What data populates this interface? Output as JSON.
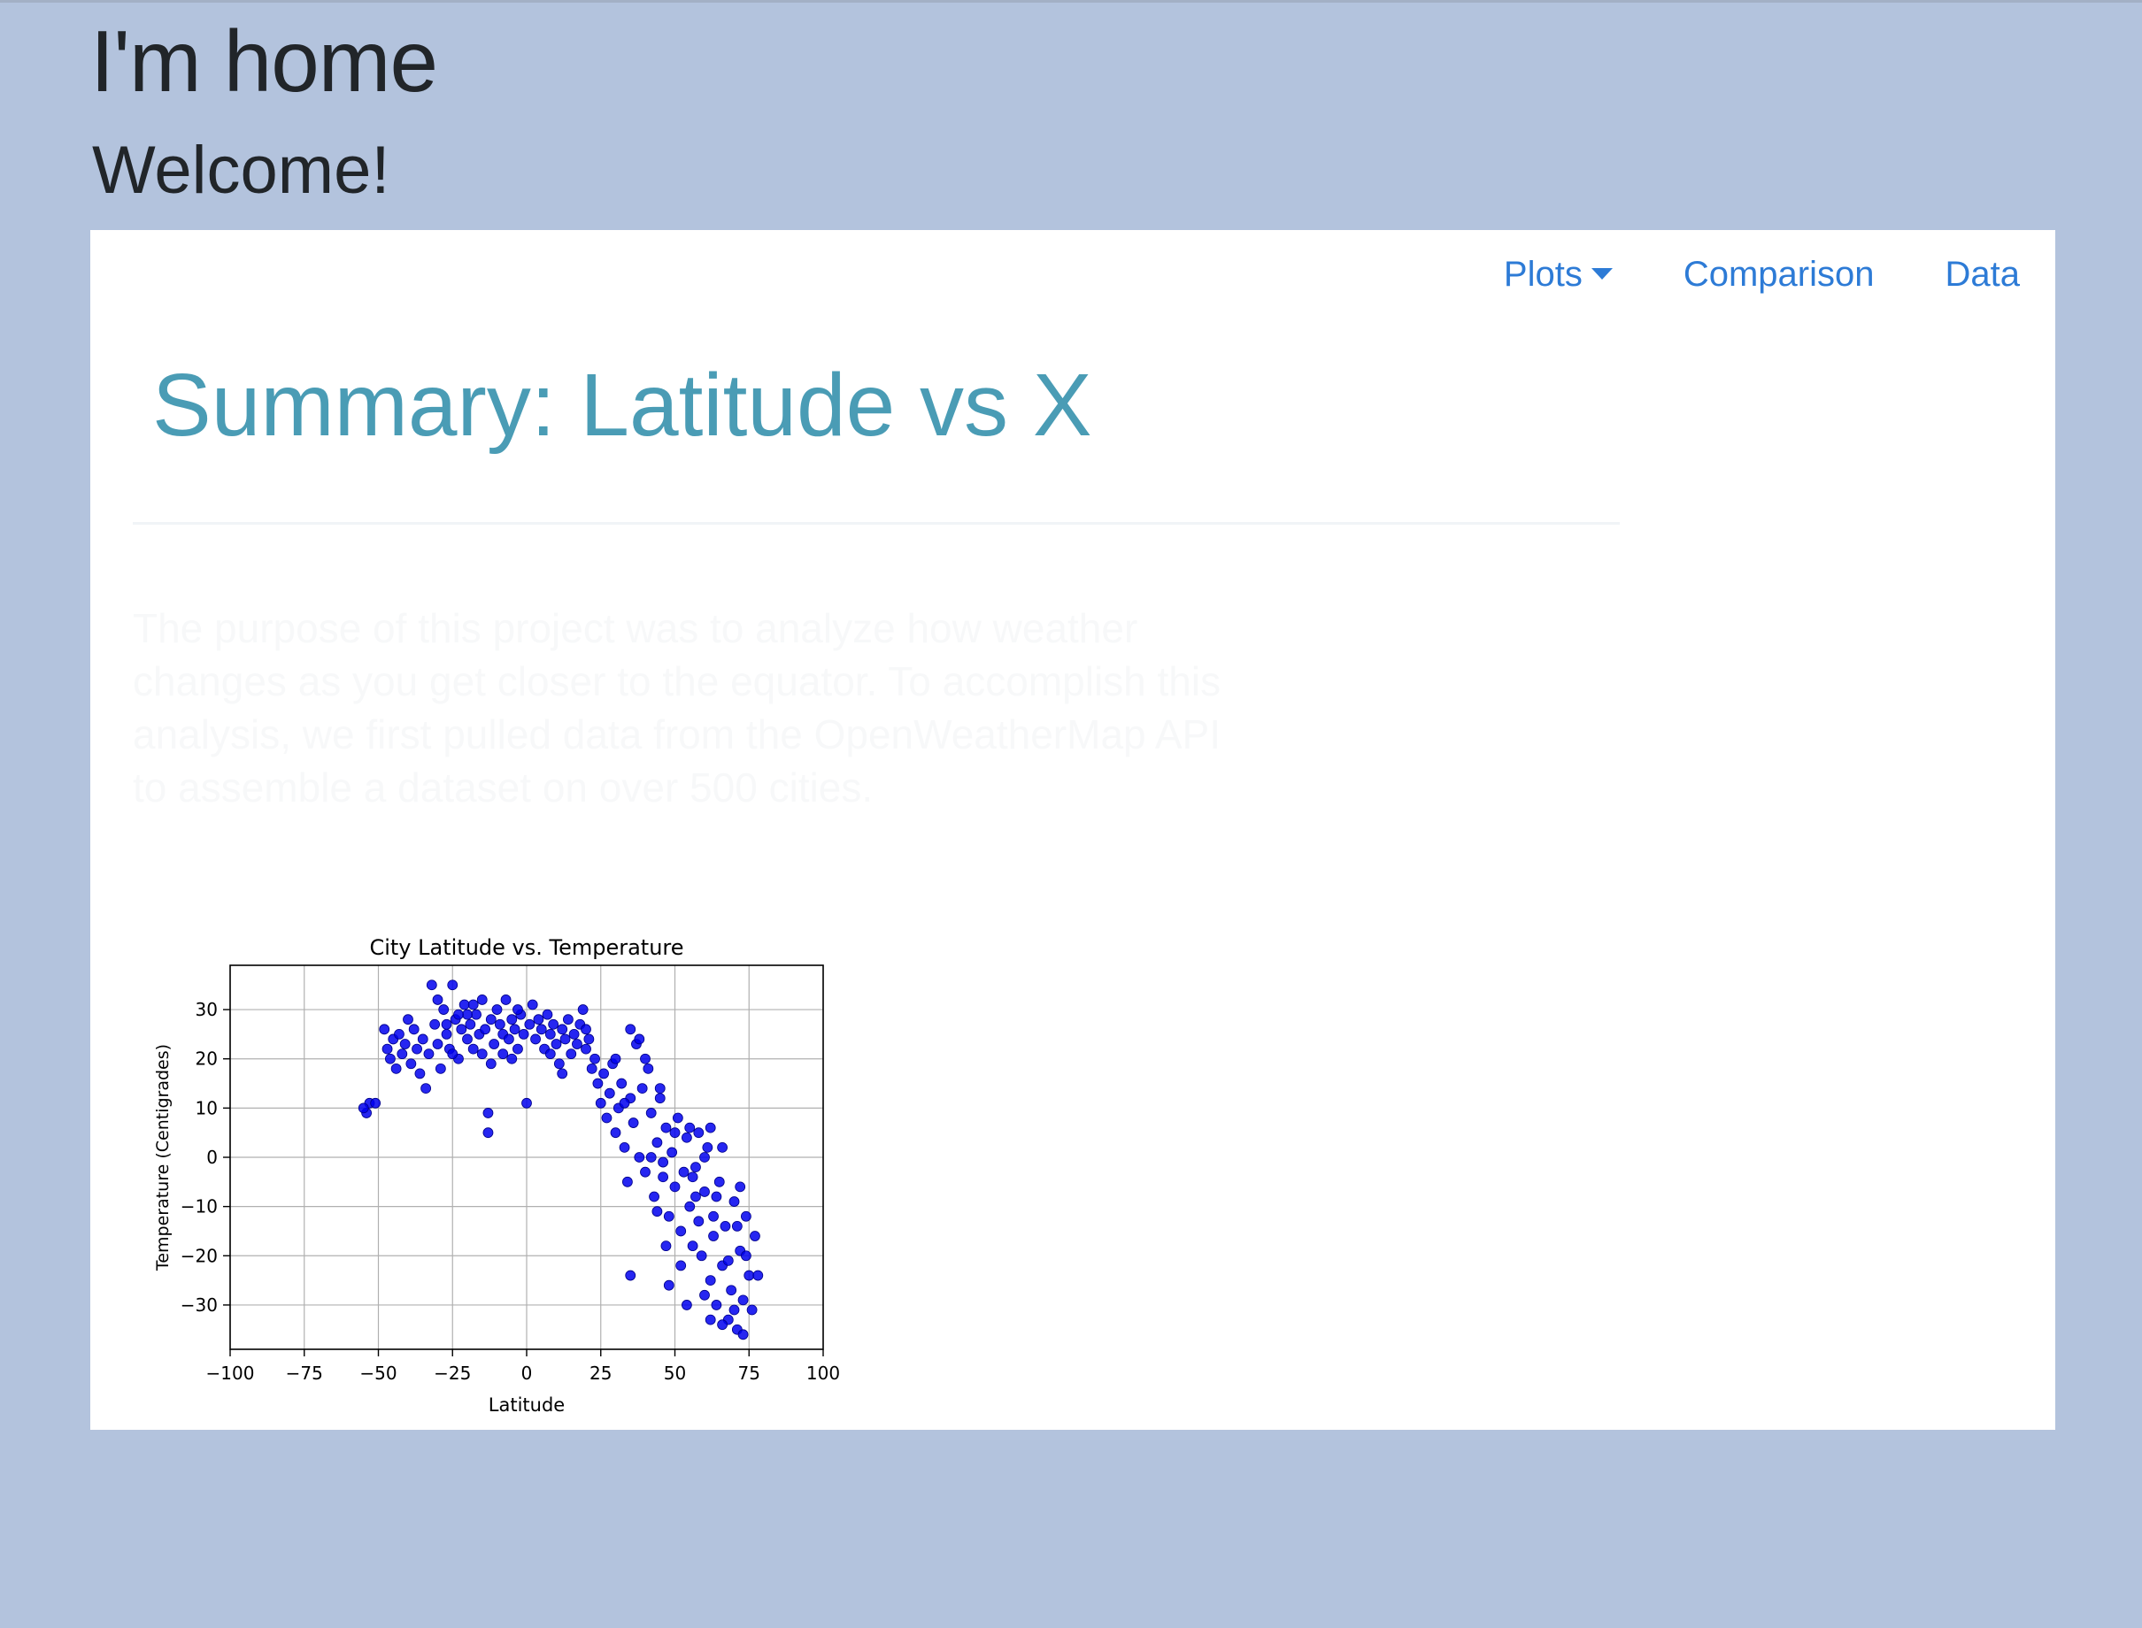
{
  "page": {
    "home_title": "I'm home",
    "welcome": "Welcome!"
  },
  "nav": {
    "plots_label": "Plots",
    "comparison_label": "Comparison",
    "data_label": "Data",
    "link_color": "#2d7bd6"
  },
  "summary": {
    "title": "Summary: Latitude vs X",
    "title_color": "#4a9cb5",
    "paragraph": "The purpose of this project was to analyze how weather changes as you get closer to the equator. To accomplish this analysis, we first pulled data from the OpenWeatherMap API to assemble a dataset on over 500 cities."
  },
  "colors": {
    "background": "#b3c3dd",
    "card": "#ffffff",
    "marker": "#0000ee"
  },
  "chart_data": {
    "type": "scatter",
    "title": "City Latitude vs. Temperature",
    "xlabel": "Latitude",
    "ylabel": "Temperature (Centigrades)",
    "xlim": [
      -100,
      100
    ],
    "ylim": [
      -39,
      39
    ],
    "xticks": [
      -100,
      -75,
      -50,
      -25,
      0,
      25,
      50,
      75,
      100
    ],
    "yticks": [
      -30,
      -20,
      -10,
      0,
      10,
      20,
      30
    ],
    "xtick_labels": [
      "−100",
      "−75",
      "−50",
      "−25",
      "0",
      "25",
      "50",
      "75",
      "100"
    ],
    "ytick_labels": [
      "−30",
      "−20",
      "−10",
      "0",
      "10",
      "20",
      "30"
    ],
    "grid": true,
    "marker_color": "#0000ee",
    "points": [
      [
        -54,
        9
      ],
      [
        -53,
        11
      ],
      [
        -51,
        11
      ],
      [
        -55,
        10
      ],
      [
        -48,
        26
      ],
      [
        -47,
        22
      ],
      [
        -46,
        20
      ],
      [
        -45,
        24
      ],
      [
        -44,
        18
      ],
      [
        -43,
        25
      ],
      [
        -42,
        21
      ],
      [
        -41,
        23
      ],
      [
        -40,
        28
      ],
      [
        -39,
        19
      ],
      [
        -38,
        26
      ],
      [
        -37,
        22
      ],
      [
        -36,
        17
      ],
      [
        -35,
        24
      ],
      [
        -34,
        14
      ],
      [
        -33,
        21
      ],
      [
        -32,
        35
      ],
      [
        -31,
        27
      ],
      [
        -30,
        23
      ],
      [
        -29,
        18
      ],
      [
        -28,
        30
      ],
      [
        -27,
        25
      ],
      [
        -26,
        22
      ],
      [
        -25,
        35
      ],
      [
        -24,
        28
      ],
      [
        -23,
        20
      ],
      [
        -22,
        26
      ],
      [
        -21,
        31
      ],
      [
        -20,
        24
      ],
      [
        -19,
        27
      ],
      [
        -18,
        22
      ],
      [
        -17,
        29
      ],
      [
        -16,
        25
      ],
      [
        -15,
        32
      ],
      [
        -14,
        26
      ],
      [
        -13,
        9
      ],
      [
        -12,
        28
      ],
      [
        -11,
        23
      ],
      [
        -10,
        30
      ],
      [
        -9,
        27
      ],
      [
        -8,
        25
      ],
      [
        -7,
        32
      ],
      [
        -6,
        24
      ],
      [
        -5,
        28
      ],
      [
        -4,
        26
      ],
      [
        -3,
        22
      ],
      [
        -2,
        29
      ],
      [
        -1,
        25
      ],
      [
        0,
        11
      ],
      [
        1,
        27
      ],
      [
        2,
        31
      ],
      [
        3,
        24
      ],
      [
        4,
        28
      ],
      [
        5,
        26
      ],
      [
        6,
        22
      ],
      [
        7,
        29
      ],
      [
        8,
        25
      ],
      [
        9,
        27
      ],
      [
        10,
        23
      ],
      [
        11,
        19
      ],
      [
        12,
        26
      ],
      [
        13,
        24
      ],
      [
        14,
        28
      ],
      [
        15,
        21
      ],
      [
        16,
        25
      ],
      [
        17,
        23
      ],
      [
        18,
        27
      ],
      [
        19,
        30
      ],
      [
        20,
        22
      ],
      [
        21,
        24
      ],
      [
        22,
        18
      ],
      [
        23,
        20
      ],
      [
        -13,
        5
      ],
      [
        -12,
        19
      ],
      [
        -25,
        21
      ],
      [
        -20,
        29
      ],
      [
        -18,
        31
      ],
      [
        -30,
        32
      ],
      [
        -27,
        27
      ],
      [
        -23,
        29
      ],
      [
        -15,
        21
      ],
      [
        -8,
        21
      ],
      [
        -5,
        20
      ],
      [
        -3,
        30
      ],
      [
        8,
        21
      ],
      [
        12,
        17
      ],
      [
        20,
        26
      ],
      [
        24,
        15
      ],
      [
        25,
        11
      ],
      [
        26,
        17
      ],
      [
        27,
        8
      ],
      [
        28,
        13
      ],
      [
        29,
        19
      ],
      [
        30,
        5
      ],
      [
        31,
        10
      ],
      [
        32,
        15
      ],
      [
        33,
        2
      ],
      [
        34,
        -5
      ],
      [
        35,
        12
      ],
      [
        35,
        26
      ],
      [
        36,
        7
      ],
      [
        37,
        23
      ],
      [
        38,
        0
      ],
      [
        39,
        14
      ],
      [
        40,
        -3
      ],
      [
        41,
        18
      ],
      [
        42,
        9
      ],
      [
        43,
        -8
      ],
      [
        44,
        3
      ],
      [
        45,
        12
      ],
      [
        46,
        -1
      ],
      [
        47,
        6
      ],
      [
        48,
        -12
      ],
      [
        49,
        1
      ],
      [
        50,
        -6
      ],
      [
        51,
        8
      ],
      [
        52,
        -15
      ],
      [
        53,
        -3
      ],
      [
        54,
        4
      ],
      [
        55,
        -10
      ],
      [
        56,
        -18
      ],
      [
        57,
        -2
      ],
      [
        58,
        5
      ],
      [
        59,
        -20
      ],
      [
        60,
        -7
      ],
      [
        61,
        2
      ],
      [
        62,
        -25
      ],
      [
        63,
        -12
      ],
      [
        64,
        -30
      ],
      [
        65,
        -5
      ],
      [
        66,
        -22
      ],
      [
        67,
        -14
      ],
      [
        68,
        -33
      ],
      [
        69,
        -27
      ],
      [
        70,
        -9
      ],
      [
        71,
        -35
      ],
      [
        72,
        -19
      ],
      [
        73,
        -29
      ],
      [
        74,
        -12
      ],
      [
        75,
        -24
      ],
      [
        76,
        -31
      ],
      [
        77,
        -16
      ],
      [
        78,
        -24
      ],
      [
        35,
        -24
      ],
      [
        48,
        -26
      ],
      [
        60,
        -28
      ],
      [
        62,
        -33
      ],
      [
        66,
        -34
      ],
      [
        70,
        -31
      ],
      [
        73,
        -36
      ],
      [
        44,
        -11
      ],
      [
        52,
        -22
      ],
      [
        57,
        -8
      ],
      [
        63,
        -16
      ],
      [
        58,
        -13
      ],
      [
        47,
        -18
      ],
      [
        54,
        -30
      ],
      [
        68,
        -21
      ],
      [
        72,
        -6
      ],
      [
        74,
        -20
      ],
      [
        66,
        2
      ],
      [
        62,
        6
      ],
      [
        55,
        6
      ],
      [
        50,
        5
      ],
      [
        45,
        14
      ],
      [
        40,
        20
      ],
      [
        38,
        24
      ],
      [
        30,
        20
      ],
      [
        33,
        11
      ],
      [
        42,
        0
      ],
      [
        46,
        -4
      ],
      [
        56,
        -4
      ],
      [
        60,
        0
      ],
      [
        64,
        -8
      ],
      [
        71,
        -14
      ]
    ]
  }
}
